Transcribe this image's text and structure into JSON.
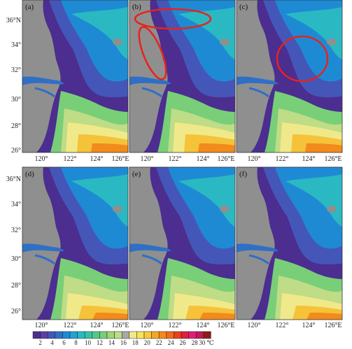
{
  "panels": [
    {
      "label": "(a)"
    },
    {
      "label": "(b)"
    },
    {
      "label": "(c)"
    },
    {
      "label": "(d)"
    },
    {
      "label": "(e)"
    },
    {
      "label": "(f)"
    }
  ],
  "axis": {
    "x_ticks": [
      "120°",
      "122°",
      "124°",
      "126°E"
    ],
    "y_ticks": [
      "36°N",
      "34°",
      "32°",
      "30°",
      "28°",
      "26°"
    ]
  },
  "colorbar": {
    "ticks": [
      "2",
      "4",
      "6",
      "8",
      "10",
      "12",
      "14",
      "16",
      "18",
      "20",
      "22",
      "24",
      "26",
      "28",
      "30"
    ],
    "unit": "℃",
    "colors": [
      "#4b2e8f",
      "#5a3fa6",
      "#4457b8",
      "#2f6fc6",
      "#1e8ad4",
      "#21a3d8",
      "#2ab9c2",
      "#37c3a3",
      "#52c98a",
      "#78cf78",
      "#9fd67b",
      "#bfdc86",
      "#a8a8a8",
      "#f0e98a",
      "#f5e35a",
      "#f7c93a",
      "#f5a623",
      "#f28a1c",
      "#ee6b1c",
      "#e8421c",
      "#e11f3b",
      "#e01e7a",
      "#c2185b",
      "#8e1b1b"
    ]
  },
  "annotations": {
    "panel_b_ellipses": 2,
    "panel_c_circles": 1,
    "ellipse_color": "#e8221c"
  }
}
